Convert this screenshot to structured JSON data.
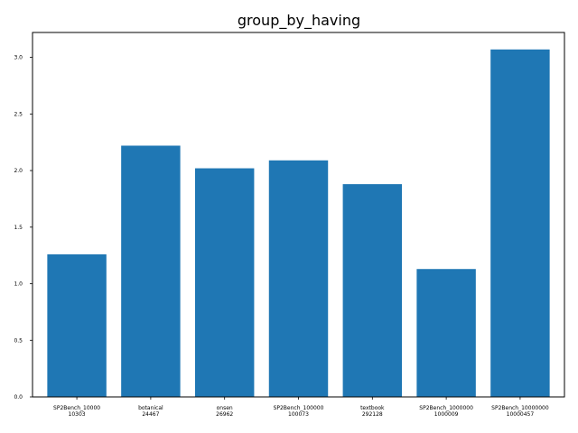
{
  "chart_data": {
    "type": "bar",
    "title": "group_by_having",
    "xlabel": "",
    "ylabel": "",
    "categories": [
      [
        "SP2Bench_10000",
        "10303"
      ],
      [
        "botanical",
        "24467"
      ],
      [
        "onsen",
        "26962"
      ],
      [
        "SP2Bench_100000",
        "100073"
      ],
      [
        "textbook",
        "292128"
      ],
      [
        "SP2Bench_1000000",
        "1000009"
      ],
      [
        "SP2Bench_10000000",
        "10000457"
      ]
    ],
    "values": [
      1.26,
      2.22,
      2.02,
      2.09,
      1.88,
      1.13,
      3.07
    ],
    "ylim": [
      0,
      3.22
    ],
    "yticks": [
      0.0,
      0.5,
      1.0,
      1.5,
      2.0,
      2.5,
      3.0
    ],
    "ytick_labels": [
      "0.0",
      "0.5",
      "1.0",
      "1.5",
      "2.0",
      "2.5",
      "3.0"
    ],
    "bar_color": "#1f77b4",
    "grid": false,
    "legend": "none"
  }
}
